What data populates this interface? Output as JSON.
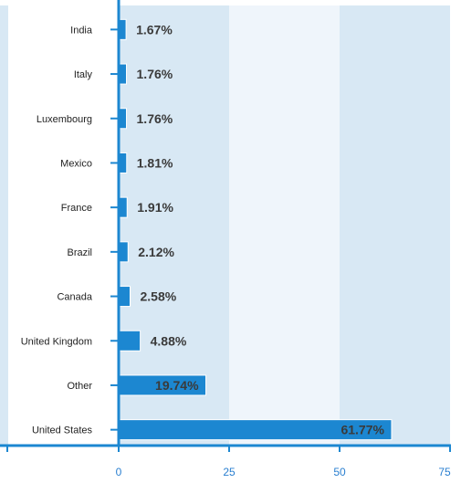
{
  "chart_data": {
    "type": "bar",
    "orientation": "horizontal",
    "categories": [
      "India",
      "Italy",
      "Luxembourg",
      "Mexico",
      "France",
      "Brazil",
      "Canada",
      "United Kingdom",
      "Other",
      "United States"
    ],
    "values": [
      1.67,
      1.76,
      1.76,
      1.81,
      1.91,
      2.12,
      2.58,
      4.88,
      19.74,
      61.77
    ],
    "value_labels": [
      "1.67%",
      "1.76%",
      "1.76%",
      "1.81%",
      "1.91%",
      "2.12%",
      "2.58%",
      "4.88%",
      "19.74%",
      "61.77%"
    ],
    "xlim": [
      0,
      75
    ],
    "x_ticks": [
      0,
      25,
      50,
      75
    ],
    "x_tick_labels": [
      "0",
      "25",
      "50",
      "75"
    ],
    "title": "",
    "xlabel": "",
    "ylabel": "",
    "grid": "alternating vertical bands",
    "legend": "none",
    "colors": {
      "bar": "#1c87d1",
      "bar_border": "#ffffff",
      "band_dark": "#d8e8f4",
      "band_light": "#eff5fb",
      "axis": "#1c87d1",
      "tick_label": "#2a7fd0",
      "value_label": "#3a3a3a",
      "category_label": "#222222"
    }
  }
}
